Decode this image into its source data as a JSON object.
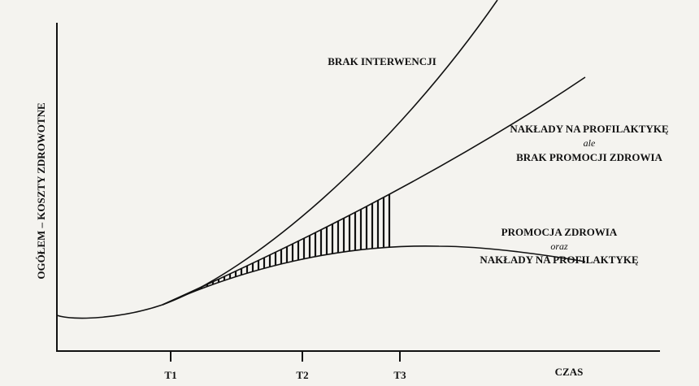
{
  "y_axis_label": "OGÓŁEM – KOSZTY ZDROWOTNE",
  "x_axis_label": "CZAS",
  "ticks": [
    "T1",
    "T2",
    "T3"
  ],
  "curves": {
    "no_intervention": "BRAK INTERWENCJI",
    "prevention_only": [
      "NAKŁADY NA PROFILAKTYKĘ",
      "ale",
      "BRAK PROMOCJI ZDROWIA"
    ],
    "promotion_and_prevention": [
      "PROMOCJA ZDROWIA",
      "oraz",
      "NAKŁADY NA PROFILAKTYKĘ"
    ]
  }
}
